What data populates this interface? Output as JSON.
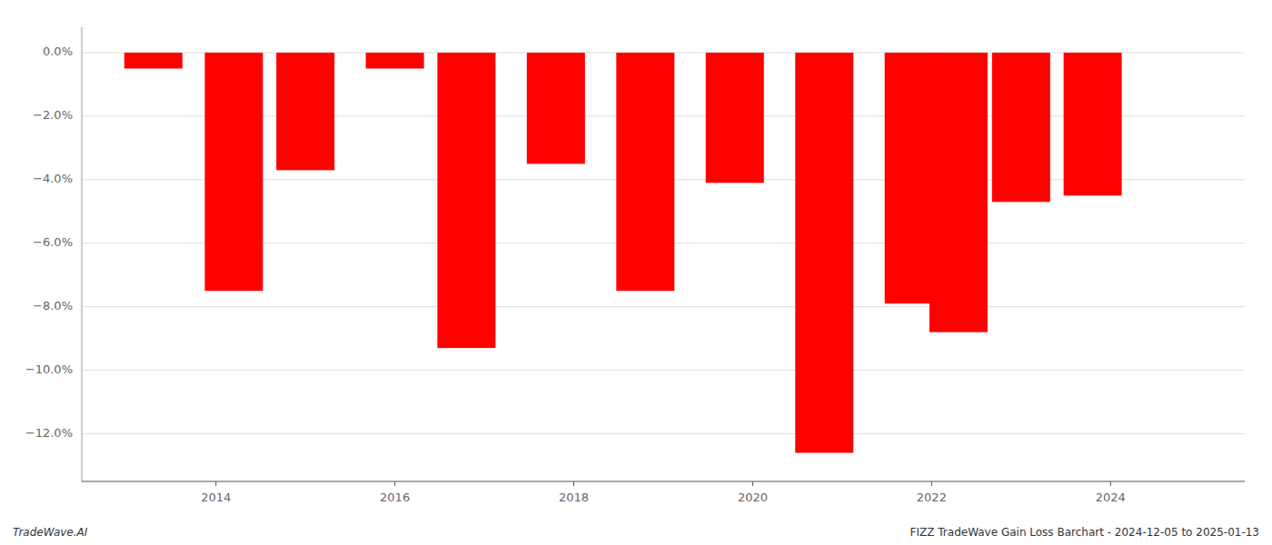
{
  "chart_data": {
    "type": "bar",
    "title": "FIZZ TradeWave Gain Loss Barchart - 2024-12-05 to 2025-01-13",
    "annotations": [
      "TradeWave.AI"
    ],
    "x": [
      2013.3,
      2014.2,
      2015.0,
      2016.0,
      2016.8,
      2017.8,
      2018.8,
      2019.8,
      2020.8,
      2021.8,
      2022.3,
      2023.0,
      2023.8
    ],
    "values": [
      -0.5,
      -7.5,
      -3.7,
      -0.5,
      -9.3,
      -3.5,
      -7.5,
      -4.1,
      -12.6,
      -7.9,
      -8.8,
      -4.7,
      -4.5
    ],
    "color": "#ff0000",
    "xlim": [
      2012.5,
      2025.5
    ],
    "xticks": [
      2014,
      2016,
      2018,
      2020,
      2022,
      2024
    ],
    "ylim": [
      -13.5,
      0.8
    ],
    "yticks": [
      {
        "value": 0.0,
        "label": "0.0%"
      },
      {
        "value": -2.0,
        "label": "−2.0%"
      },
      {
        "value": -4.0,
        "label": "−4.0%"
      },
      {
        "value": -6.0,
        "label": "−6.0%"
      },
      {
        "value": -8.0,
        "label": "−8.0%"
      },
      {
        "value": -10.0,
        "label": "−10.0%"
      },
      {
        "value": -12.0,
        "label": "−12.0%"
      }
    ],
    "grid": true
  }
}
